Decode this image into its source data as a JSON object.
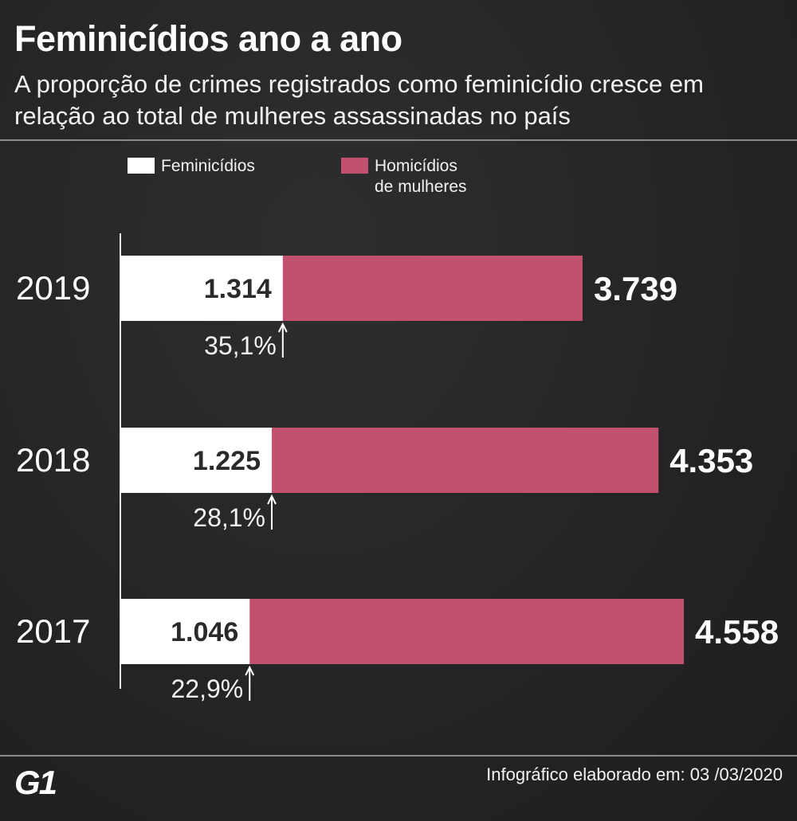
{
  "title": "Feminicídios ano a ano",
  "subtitle": "A proporção de crimes registrados como feminicídio cresce em relação ao total de mulheres assassinadas no país",
  "legend": {
    "feminicidios": "Feminicídios",
    "homicidios_line1": "Homicídios",
    "homicidios_line2": "de mulheres"
  },
  "colors": {
    "feminicidios": "#ffffff",
    "homicidios": "#c4506f",
    "background": "#262626"
  },
  "chart_data": {
    "type": "bar",
    "orientation": "horizontal",
    "stacked": "overlay",
    "title": "Feminicídios ano a ano",
    "categories": [
      "2019",
      "2018",
      "2017"
    ],
    "series": [
      {
        "name": "Feminicídios",
        "values": [
          1314,
          1225,
          1046
        ],
        "labels": [
          "1.314",
          "1.225",
          "1.046"
        ]
      },
      {
        "name": "Homicídios de mulheres",
        "values": [
          3739,
          4353,
          4558
        ],
        "labels": [
          "3.739",
          "4.353",
          "4.558"
        ]
      }
    ],
    "percentages": [
      "35,1%",
      "28,1%",
      "22,9%"
    ],
    "xlim": [
      0,
      4558
    ]
  },
  "footer": {
    "logo": "G1",
    "credit": "Infográfico elaborado em: 03 /03/2020"
  }
}
